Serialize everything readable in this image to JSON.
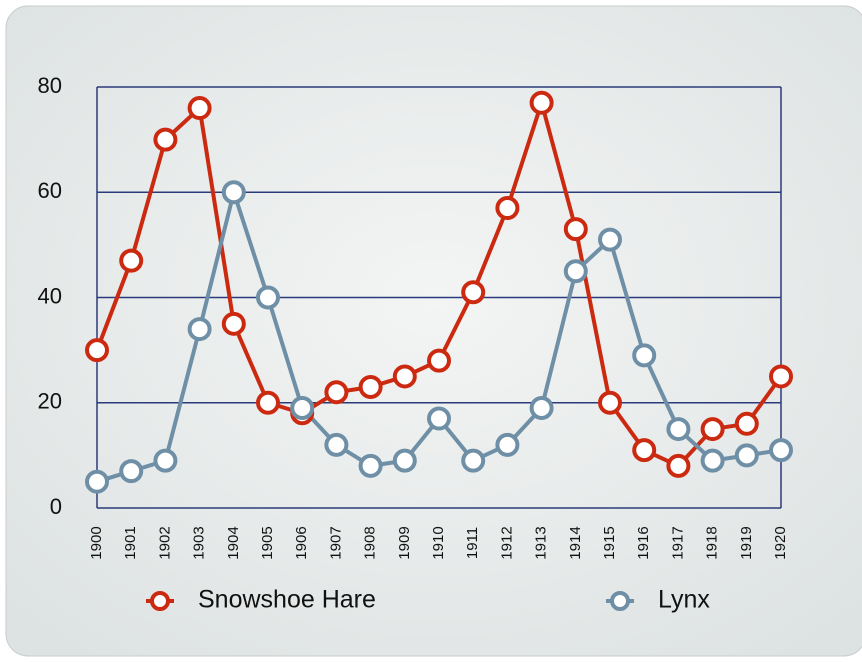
{
  "chart_data": {
    "type": "line",
    "categories": [
      "1900",
      "1901",
      "1902",
      "1903",
      "1904",
      "1905",
      "1906",
      "1907",
      "1908",
      "1909",
      "1910",
      "1911",
      "1912",
      "1913",
      "1914",
      "1915",
      "1916",
      "1917",
      "1918",
      "1919",
      "1920"
    ],
    "series": [
      {
        "name": "Snowshoe Hare",
        "color": "#cc2a10",
        "values": [
          30,
          47,
          70,
          76,
          35,
          20,
          18,
          22,
          23,
          25,
          28,
          41,
          57,
          77,
          53,
          20,
          11,
          8,
          15,
          16,
          25
        ]
      },
      {
        "name": "Lynx",
        "color": "#6e8fa6",
        "values": [
          5,
          7,
          9,
          34,
          60,
          40,
          19,
          12,
          8,
          9,
          17,
          9,
          12,
          19,
          45,
          51,
          29,
          15,
          9,
          10,
          11
        ]
      }
    ],
    "ylim": [
      0,
      80
    ],
    "yticks": [
      0,
      20,
      40,
      60,
      80
    ],
    "grid": true,
    "legend": "bottom"
  }
}
